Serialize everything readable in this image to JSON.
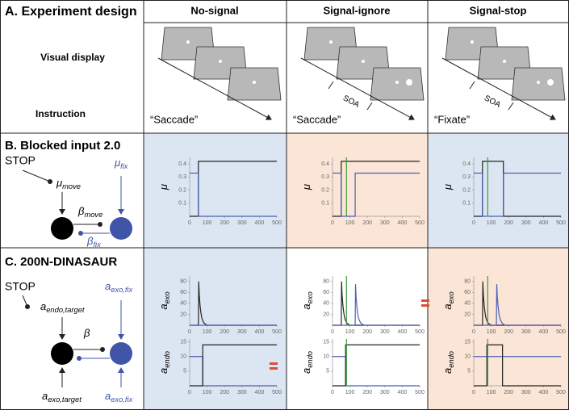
{
  "panel_a": {
    "title": "A. Experiment design",
    "row_labels": [
      "Visual display",
      "Instruction"
    ],
    "columns": [
      "No-signal",
      "Signal-ignore",
      "Signal-stop"
    ],
    "soa_labels": [
      "SOA",
      "SOA"
    ],
    "instructions": [
      "“Saccade”",
      "“Saccade”",
      "“Fixate”"
    ]
  },
  "panel_b": {
    "title": "B. Blocked input 2.0",
    "diagram": {
      "stop": "STOP",
      "mu_move": {
        "base": "μ",
        "sub": "move"
      },
      "mu_fix": {
        "base": "μ",
        "sub": "fix"
      },
      "beta_move": {
        "base": "β",
        "sub": "move"
      },
      "beta_fix": {
        "base": "β",
        "sub": "fix"
      }
    },
    "plots": [
      {
        "ylabel": {
          "base": "μ"
        },
        "xlim": [
          0,
          500
        ],
        "ylim": [
          0,
          0.45
        ],
        "xticks": [
          0,
          100,
          200,
          300,
          400,
          500
        ],
        "yticks": [
          0.1,
          0.2,
          0.3,
          0.4
        ],
        "series": [
          {
            "color": "#222222",
            "x": [
              0,
              50,
              50,
              500
            ],
            "values": [
              0,
              0,
              0.42,
              0.42
            ]
          },
          {
            "color": "#4a5fb5",
            "x": [
              0,
              50,
              50,
              500
            ],
            "values": [
              0.33,
              0.33,
              0,
              0
            ]
          }
        ]
      },
      {
        "ylabel": {
          "base": "μ"
        },
        "xlim": [
          0,
          500
        ],
        "ylim": [
          0,
          0.45
        ],
        "xticks": [
          0,
          100,
          200,
          300,
          400,
          500
        ],
        "yticks": [
          0.1,
          0.2,
          0.3,
          0.4
        ],
        "series": [
          {
            "color": "#222222",
            "x": [
              0,
              50,
              50,
              500
            ],
            "values": [
              0,
              0,
              0.42,
              0.42
            ]
          },
          {
            "color": "#4a5fb5",
            "x": [
              0,
              50,
              50,
              130,
              130,
              500
            ],
            "values": [
              0.33,
              0.33,
              0,
              0,
              0.33,
              0.33
            ]
          },
          {
            "color": "#3a9a3a",
            "x": [
              80,
              80
            ],
            "values": [
              0,
              0.45
            ]
          }
        ]
      },
      {
        "ylabel": {
          "base": "μ"
        },
        "xlim": [
          0,
          500
        ],
        "ylim": [
          0,
          0.45
        ],
        "xticks": [
          0,
          100,
          200,
          300,
          400,
          500
        ],
        "yticks": [
          0.1,
          0.2,
          0.3,
          0.4
        ],
        "series": [
          {
            "color": "#222222",
            "x": [
              0,
              50,
              50,
              170,
              170,
              500
            ],
            "values": [
              0,
              0,
              0.42,
              0.42,
              0,
              0
            ]
          },
          {
            "color": "#4a5fb5",
            "x": [
              0,
              50,
              50,
              170,
              170,
              500
            ],
            "values": [
              0.33,
              0.33,
              0,
              0,
              0.33,
              0.33
            ]
          },
          {
            "color": "#3a9a3a",
            "x": [
              80,
              80
            ],
            "values": [
              0,
              0.45
            ]
          }
        ]
      }
    ]
  },
  "panel_c": {
    "title": "C. 200N-DINASAUR",
    "diagram": {
      "stop": "STOP",
      "a_endo_target": {
        "base": "a",
        "sub": "endo,target"
      },
      "beta": {
        "base": "β"
      },
      "a_exo_fix_top": {
        "base": "a",
        "sub": "exo,fix"
      },
      "a_exo_fix_bottom": {
        "base": "a",
        "sub": "exo,fix"
      },
      "a_exo_target": {
        "base": "a",
        "sub": "exo,target"
      }
    },
    "plots": [
      {
        "ylabel": {
          "base": "a",
          "sub": "exo"
        },
        "xlim": [
          0,
          500
        ],
        "ylim": [
          0,
          90
        ],
        "xticks": [
          0,
          100,
          200,
          300,
          400,
          500
        ],
        "yticks": [
          20,
          40,
          60,
          80
        ],
        "series": [
          {
            "color": "#222222",
            "x": [
              0,
              50,
              52,
              55,
              60,
              65,
              70,
              80,
              90,
              100,
              500
            ],
            "values": [
              0,
              0,
              80,
              55,
              35,
              22,
              13,
              5,
              2,
              0,
              0
            ]
          },
          {
            "color": "#4a5fb5",
            "x": [
              0,
              500
            ],
            "values": [
              0,
              0
            ]
          }
        ]
      },
      {
        "ylabel": {
          "base": "a",
          "sub": "exo"
        },
        "xlim": [
          0,
          500
        ],
        "ylim": [
          0,
          90
        ],
        "xticks": [
          0,
          100,
          200,
          300,
          400,
          500
        ],
        "yticks": [
          20,
          40,
          60,
          80
        ],
        "series": [
          {
            "color": "#222222",
            "x": [
              0,
              50,
              52,
              55,
              60,
              65,
              70,
              80,
              90,
              100,
              500
            ],
            "values": [
              0,
              0,
              80,
              55,
              35,
              22,
              13,
              5,
              2,
              0,
              0
            ]
          },
          {
            "color": "#4a5fb5",
            "x": [
              0,
              130,
              132,
              135,
              140,
              145,
              150,
              160,
              170,
              180,
              500
            ],
            "values": [
              0,
              0,
              75,
              52,
              33,
              20,
              12,
              5,
              2,
              0,
              0
            ]
          },
          {
            "color": "#3a9a3a",
            "x": [
              80,
              80
            ],
            "values": [
              0,
              90
            ]
          }
        ]
      },
      {
        "ylabel": {
          "base": "a",
          "sub": "exo"
        },
        "xlim": [
          0,
          500
        ],
        "ylim": [
          0,
          90
        ],
        "xticks": [
          0,
          100,
          200,
          300,
          400,
          500
        ],
        "yticks": [
          20,
          40,
          60,
          80
        ],
        "series": [
          {
            "color": "#222222",
            "x": [
              0,
              50,
              52,
              55,
              60,
              65,
              70,
              80,
              90,
              100,
              500
            ],
            "values": [
              0,
              0,
              80,
              55,
              35,
              22,
              13,
              5,
              2,
              0,
              0
            ]
          },
          {
            "color": "#4a5fb5",
            "x": [
              0,
              130,
              132,
              135,
              140,
              145,
              150,
              160,
              170,
              180,
              500
            ],
            "values": [
              0,
              0,
              75,
              52,
              33,
              20,
              12,
              5,
              2,
              0,
              0
            ]
          },
          {
            "color": "#3a9a3a",
            "x": [
              80,
              80
            ],
            "values": [
              0,
              90
            ]
          }
        ]
      },
      {
        "ylabel": {
          "base": "a",
          "sub": "endo"
        },
        "xlim": [
          0,
          500
        ],
        "ylim": [
          0,
          16
        ],
        "xticks": [
          0,
          100,
          200,
          300,
          400,
          500
        ],
        "yticks": [
          5,
          10,
          15
        ],
        "series": [
          {
            "color": "#4a5fb5",
            "x": [
              0,
              75,
              75,
              500
            ],
            "values": [
              10,
              10,
              0,
              0
            ]
          },
          {
            "color": "#222222",
            "x": [
              0,
              75,
              75,
              500
            ],
            "values": [
              0,
              0,
              14,
              14
            ]
          }
        ]
      },
      {
        "ylabel": {
          "base": "a",
          "sub": "endo"
        },
        "xlim": [
          0,
          500
        ],
        "ylim": [
          0,
          16
        ],
        "xticks": [
          0,
          100,
          200,
          300,
          400,
          500
        ],
        "yticks": [
          5,
          10,
          15
        ],
        "series": [
          {
            "color": "#4a5fb5",
            "x": [
              0,
              75,
              75,
              500
            ],
            "values": [
              10,
              10,
              0,
              0
            ]
          },
          {
            "color": "#222222",
            "x": [
              0,
              75,
              75,
              500
            ],
            "values": [
              0,
              0,
              14,
              14
            ]
          },
          {
            "color": "#3a9a3a",
            "x": [
              80,
              80
            ],
            "values": [
              0,
              16
            ]
          }
        ]
      },
      {
        "ylabel": {
          "base": "a",
          "sub": "endo"
        },
        "xlim": [
          0,
          500
        ],
        "ylim": [
          0,
          16
        ],
        "xticks": [
          0,
          100,
          200,
          300,
          400,
          500
        ],
        "yticks": [
          5,
          10,
          15
        ],
        "series": [
          {
            "color": "#4a5fb5",
            "x": [
              0,
              500
            ],
            "values": [
              10,
              10
            ]
          },
          {
            "color": "#222222",
            "x": [
              0,
              75,
              75,
              165,
              165,
              500
            ],
            "values": [
              0,
              0,
              14,
              14,
              0,
              0
            ]
          },
          {
            "color": "#3a9a3a",
            "x": [
              80,
              80
            ],
            "values": [
              0,
              16
            ]
          }
        ]
      }
    ]
  }
}
